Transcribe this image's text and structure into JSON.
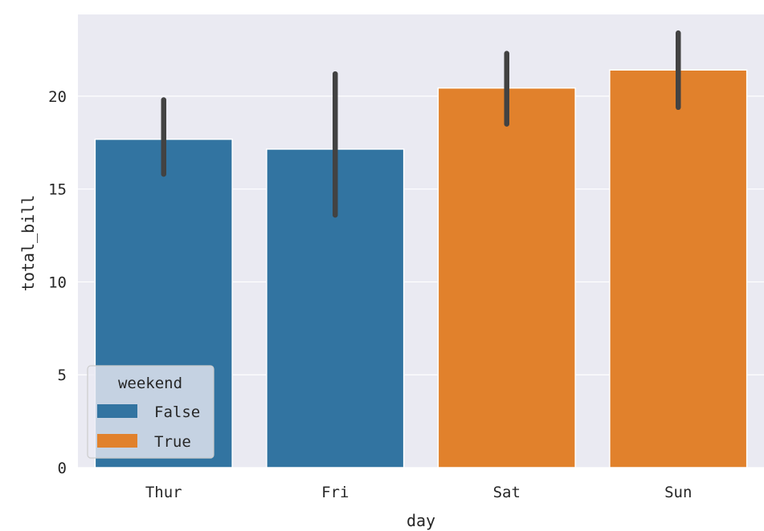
{
  "chart_data": {
    "type": "bar",
    "title": "",
    "xlabel": "day",
    "ylabel": "total_bill",
    "categories": [
      "Thur",
      "Fri",
      "Sat",
      "Sun"
    ],
    "values": [
      17.68,
      17.15,
      20.44,
      21.41
    ],
    "error_low": [
      15.8,
      13.6,
      18.5,
      19.4
    ],
    "error_high": [
      19.8,
      21.2,
      22.3,
      23.4
    ],
    "hue": [
      false,
      false,
      true,
      true
    ],
    "ylim": [
      0,
      24.4
    ],
    "yticks": [
      0,
      5,
      10,
      15,
      20
    ],
    "grid": true,
    "legend": {
      "title": "weekend",
      "placement": "lower-left",
      "entries": [
        {
          "label": "False",
          "color": "#3274a1"
        },
        {
          "label": "True",
          "color": "#e1812c"
        }
      ]
    },
    "colors": {
      "background": "#eaeaf2",
      "grid": "#ffffff",
      "error_bar": "#424242",
      "false": "#3274a1",
      "true": "#e1812c"
    }
  }
}
